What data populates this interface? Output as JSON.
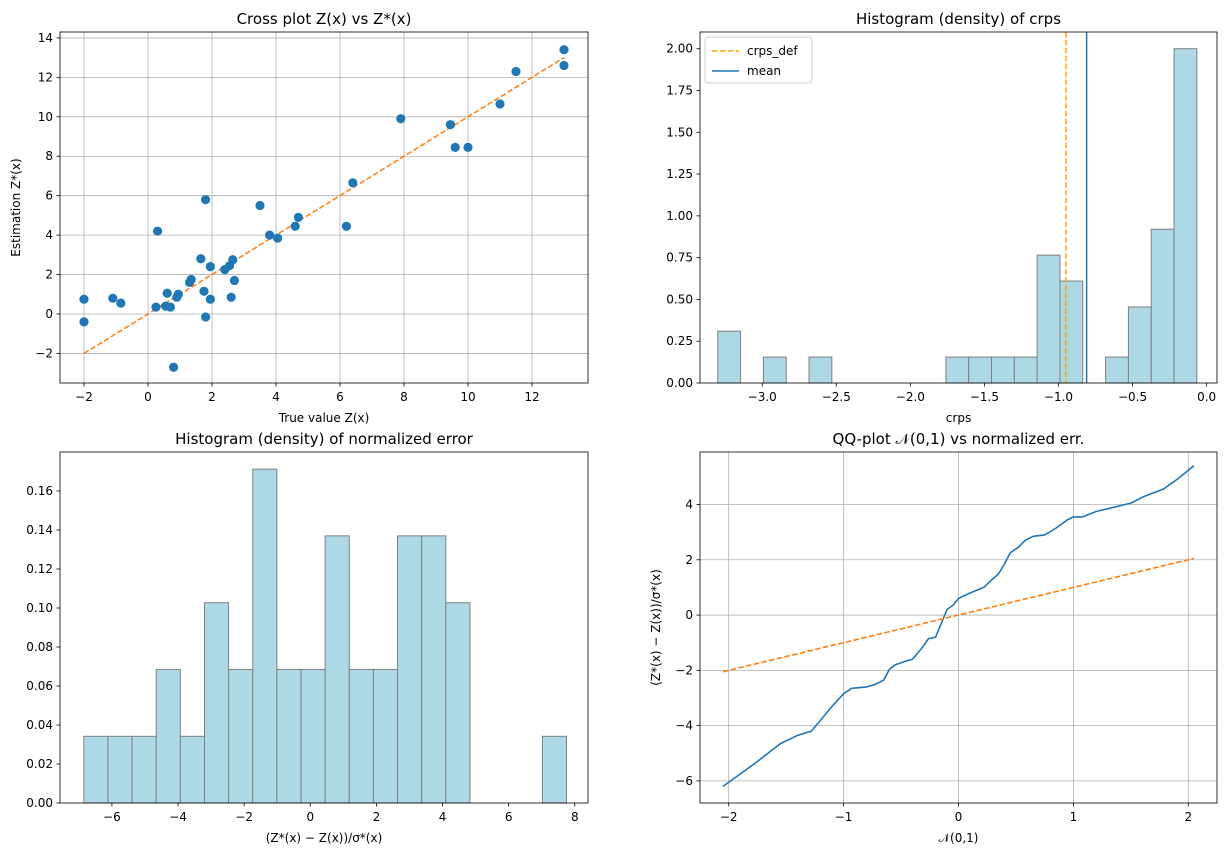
{
  "chart_data": [
    {
      "type": "scatter",
      "title": "Cross plot Z(x) vs Z*(x)",
      "xlabel": "True value Z(x)",
      "ylabel": "Estimation Z*(x)",
      "xlim": [
        -2.75,
        13.75
      ],
      "ylim": [
        -3.5,
        14.3
      ],
      "xticks": [
        -2,
        0,
        2,
        4,
        6,
        8,
        10,
        12
      ],
      "yticks": [
        -2,
        0,
        2,
        4,
        6,
        8,
        10,
        12,
        14
      ],
      "grid": true,
      "points": [
        [
          -2.0,
          0.75
        ],
        [
          -2.0,
          -0.4
        ],
        [
          -1.1,
          0.8
        ],
        [
          -0.85,
          0.55
        ],
        [
          0.25,
          0.35
        ],
        [
          0.3,
          4.2
        ],
        [
          0.55,
          0.4
        ],
        [
          0.6,
          1.05
        ],
        [
          0.7,
          0.35
        ],
        [
          0.8,
          -2.7
        ],
        [
          0.9,
          0.85
        ],
        [
          0.95,
          1.0
        ],
        [
          1.3,
          1.6
        ],
        [
          1.35,
          1.75
        ],
        [
          1.65,
          2.8
        ],
        [
          1.75,
          1.15
        ],
        [
          1.8,
          5.8
        ],
        [
          1.8,
          -0.15
        ],
        [
          1.95,
          2.4
        ],
        [
          1.95,
          0.75
        ],
        [
          2.4,
          2.25
        ],
        [
          2.55,
          2.45
        ],
        [
          2.6,
          0.85
        ],
        [
          2.65,
          2.75
        ],
        [
          2.7,
          1.7
        ],
        [
          3.5,
          5.5
        ],
        [
          3.8,
          4.0
        ],
        [
          4.05,
          3.85
        ],
        [
          4.6,
          4.45
        ],
        [
          4.7,
          4.9
        ],
        [
          6.2,
          4.45
        ],
        [
          6.4,
          6.65
        ],
        [
          7.9,
          9.9
        ],
        [
          9.45,
          9.6
        ],
        [
          9.6,
          8.45
        ],
        [
          10.0,
          8.45
        ],
        [
          11.0,
          10.65
        ],
        [
          11.5,
          12.3
        ],
        [
          13.0,
          13.4
        ],
        [
          13.0,
          12.6
        ]
      ],
      "reference_line": [
        [
          -2,
          -2
        ],
        [
          13,
          13
        ]
      ]
    },
    {
      "type": "bar",
      "title": "Histogram (density) of crps",
      "xlabel": "crps",
      "xlim": [
        -3.42,
        0.07
      ],
      "ylim": [
        0,
        2.1
      ],
      "xticks": [
        -3.0,
        -2.5,
        -2.0,
        -1.5,
        -1.0,
        -0.5,
        0.0
      ],
      "yticks": [
        0.0,
        0.25,
        0.5,
        0.75,
        1.0,
        1.25,
        1.5,
        1.75,
        2.0
      ],
      "bin_edges": [
        -3.3,
        -3.146,
        -2.992,
        -2.838,
        -2.684,
        -2.53,
        -2.376,
        -2.222,
        -2.068,
        -1.914,
        -1.76,
        -1.606,
        -1.452,
        -1.298,
        -1.144,
        -0.99,
        -0.836,
        -0.682,
        -0.528,
        -0.374,
        -0.22,
        -0.066
      ],
      "densities": [
        0.31,
        0,
        0.155,
        0,
        0.155,
        0,
        0,
        0,
        0,
        0,
        0.155,
        0.155,
        0.155,
        0.155,
        0.765,
        0.61,
        0,
        0.155,
        0.455,
        0.92,
        2.0
      ],
      "vlines": [
        {
          "name": "crps_def",
          "x": -0.95,
          "style": "dashed",
          "color": "#ffa500"
        },
        {
          "name": "mean",
          "x": -0.81,
          "style": "solid",
          "color": "#1f77b4"
        }
      ],
      "legend_placement": "top-left",
      "legend": [
        "crps_def",
        "mean"
      ]
    },
    {
      "type": "bar",
      "title": "Histogram (density) of normalized error",
      "xlabel": "(Z*(x) − Z(x))/σ*(x)",
      "xlim": [
        -7.57,
        8.4
      ],
      "ylim": [
        0,
        0.18
      ],
      "xticks": [
        -6,
        -4,
        -2,
        0,
        2,
        4,
        6,
        8
      ],
      "yticks": [
        0.0,
        0.02,
        0.04,
        0.06,
        0.08,
        0.1,
        0.12,
        0.14,
        0.16
      ],
      "bin_edges": [
        -6.85,
        -6.12,
        -5.39,
        -4.66,
        -3.93,
        -3.2,
        -2.47,
        -1.74,
        -1.01,
        -0.28,
        0.45,
        1.18,
        1.91,
        2.64,
        3.37,
        4.1,
        4.83,
        5.56,
        6.29,
        7.02,
        7.75
      ],
      "densities": [
        0.0342,
        0.0342,
        0.0342,
        0.0685,
        0.0342,
        0.1027,
        0.0685,
        0.1712,
        0.0685,
        0.0685,
        0.137,
        0.0685,
        0.0685,
        0.137,
        0.137,
        0.1027,
        0,
        0,
        0,
        0.0342
      ]
    },
    {
      "type": "line",
      "title": "QQ-plot 𝒩(0,1) vs normalized err.",
      "xlabel": "𝒩(0,1)",
      "ylabel": "(Z*(x) − Z(x))/σ*(x)",
      "xlim": [
        -2.25,
        2.25
      ],
      "ylim": [
        -6.8,
        5.9
      ],
      "xticks": [
        -2,
        -1,
        0,
        1,
        2
      ],
      "yticks": [
        -6,
        -4,
        -2,
        0,
        2,
        4
      ],
      "grid": true,
      "series": [
        {
          "values": [
            [
              -2.05,
              -6.2
            ],
            [
              -1.9,
              -5.75
            ],
            [
              -1.75,
              -5.3
            ],
            [
              -1.55,
              -4.65
            ],
            [
              -1.4,
              -4.35
            ],
            [
              -1.28,
              -4.2
            ],
            [
              -1.2,
              -3.8
            ],
            [
              -1.1,
              -3.3
            ],
            [
              -1.0,
              -2.85
            ],
            [
              -0.93,
              -2.65
            ],
            [
              -0.8,
              -2.6
            ],
            [
              -0.72,
              -2.5
            ],
            [
              -0.65,
              -2.35
            ],
            [
              -0.6,
              -1.95
            ],
            [
              -0.55,
              -1.8
            ],
            [
              -0.45,
              -1.65
            ],
            [
              -0.4,
              -1.6
            ],
            [
              -0.32,
              -1.2
            ],
            [
              -0.26,
              -0.85
            ],
            [
              -0.2,
              -0.8
            ],
            [
              -0.15,
              -0.3
            ],
            [
              -0.1,
              0.2
            ],
            [
              -0.05,
              0.35
            ],
            [
              0.0,
              0.6
            ],
            [
              0.1,
              0.8
            ],
            [
              0.22,
              1.0
            ],
            [
              0.27,
              1.2
            ],
            [
              0.35,
              1.5
            ],
            [
              0.4,
              1.85
            ],
            [
              0.45,
              2.25
            ],
            [
              0.52,
              2.45
            ],
            [
              0.58,
              2.7
            ],
            [
              0.65,
              2.85
            ],
            [
              0.75,
              2.9
            ],
            [
              0.85,
              3.15
            ],
            [
              0.95,
              3.45
            ],
            [
              1.0,
              3.55
            ],
            [
              1.08,
              3.55
            ],
            [
              1.2,
              3.75
            ],
            [
              1.3,
              3.85
            ],
            [
              1.5,
              4.05
            ],
            [
              1.62,
              4.3
            ],
            [
              1.78,
              4.55
            ],
            [
              1.9,
              4.9
            ],
            [
              2.05,
              5.4
            ]
          ]
        },
        {
          "style": "dashed",
          "values": [
            [
              -2.05,
              -2.05
            ],
            [
              2.05,
              2.05
            ]
          ]
        }
      ]
    }
  ]
}
